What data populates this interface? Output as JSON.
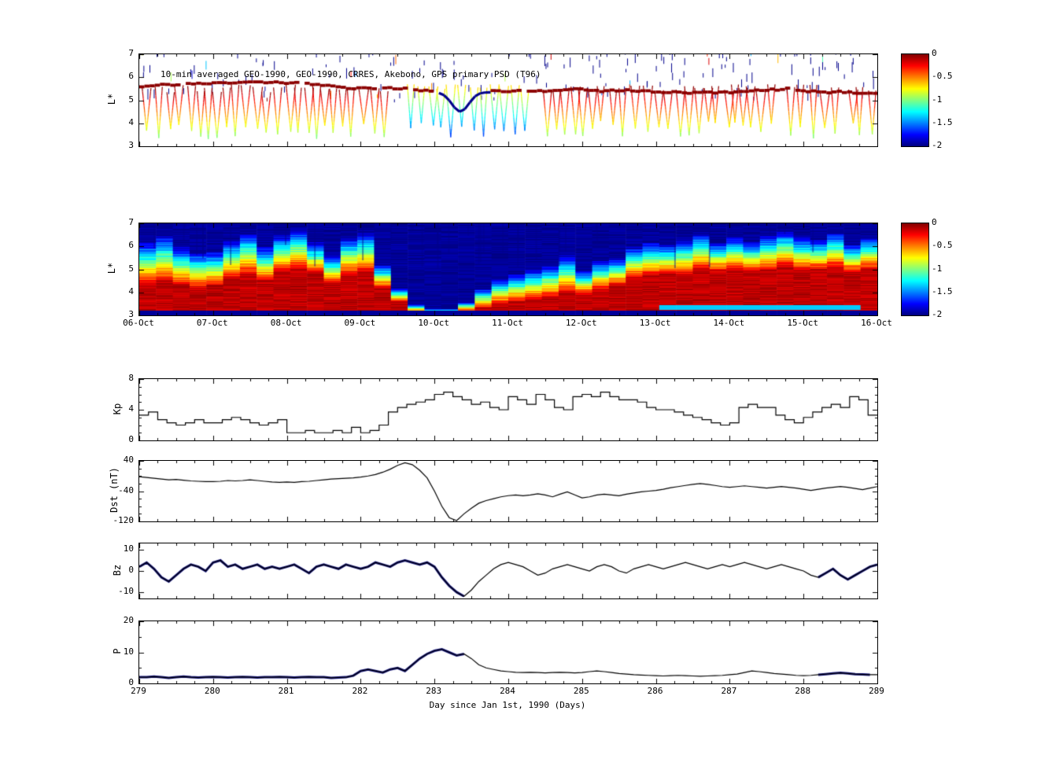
{
  "figure": {
    "background": "#ffffff",
    "xlim": [
      279,
      289
    ],
    "thick_line_color": "#10107a",
    "band_color": "#8b0000",
    "storm_dip_color": "#00008b"
  },
  "chart_data": [
    {
      "id": "psd_scatter",
      "type": "scatter",
      "title": "10-min averaged GEO-1990, GEO-1990, CRRES, Akebono, GPS primary PSD (T96)",
      "ylabel": "L*",
      "ylim": [
        3,
        7
      ],
      "yticks": [
        3,
        4,
        5,
        6,
        7
      ],
      "xlim": [
        279,
        289
      ],
      "clim": [
        -2,
        0
      ],
      "colorbar_ticks": [
        0,
        -0.5,
        -1,
        -1.5,
        -2
      ],
      "seed": 7,
      "band_L": 5.55,
      "dip_min_L": 3.4,
      "dip_spacing_days": 0.13,
      "storm_days": [
        283.0,
        283.7
      ]
    },
    {
      "id": "psd_heatmap",
      "type": "heatmap",
      "ylabel": "L*",
      "ylim": [
        3,
        7
      ],
      "yticks": [
        3,
        4,
        5,
        6,
        7
      ],
      "xlim": [
        279,
        289
      ],
      "clim": [
        -2,
        0
      ],
      "colorbar_ticks": [
        0,
        -0.5,
        -1,
        -1.5,
        -2
      ],
      "x_tick_labels": [
        "06-Oct",
        "07-Oct",
        "08-Oct",
        "09-Oct",
        "10-Oct",
        "11-Oct",
        "12-Oct",
        "13-Oct",
        "14-Oct",
        "15-Oct",
        "16-Oct"
      ],
      "bottom_strip_L": 3.22,
      "cyan_strip_days": [
        286.0,
        288.7
      ],
      "cyan_strip_L": [
        3.25,
        3.45
      ],
      "red_top": [
        4.4,
        4.5,
        4.3,
        4.2,
        4.3,
        4.6,
        4.8,
        4.5,
        4.9,
        5.0,
        4.8,
        4.4,
        4.8,
        4.9,
        4.2,
        3.6,
        3.15,
        3.1,
        3.1,
        3.2,
        3.3,
        3.5,
        3.6,
        3.7,
        3.8,
        4.0,
        3.9,
        4.1,
        4.3,
        4.6,
        4.7,
        4.8,
        4.8,
        5.0,
        4.9,
        5.0,
        4.9,
        5.0,
        5.1,
        5.0,
        5.0,
        5.1,
        4.9,
        5.0
      ],
      "blue_top": [
        6.2,
        6.5,
        6.0,
        5.8,
        5.8,
        6.3,
        6.6,
        6.0,
        6.5,
        6.8,
        6.2,
        5.6,
        6.4,
        6.6,
        5.2,
        4.2,
        3.5,
        3.3,
        3.3,
        3.6,
        4.2,
        4.6,
        4.8,
        5.0,
        5.2,
        5.6,
        5.0,
        5.4,
        5.5,
        6.0,
        6.2,
        6.1,
        6.3,
        6.6,
        6.2,
        6.4,
        6.2,
        6.5,
        6.7,
        6.4,
        6.3,
        6.6,
        6.1,
        6.4
      ]
    },
    {
      "id": "kp",
      "type": "line-step",
      "ylabel": "Kp",
      "ylim": [
        0,
        8
      ],
      "yticks": [
        0,
        4,
        8
      ],
      "yminor_step": 1,
      "x_start": 279,
      "x_step": 0.125,
      "values": [
        3.3,
        3.7,
        2.7,
        2.3,
        2.0,
        2.3,
        2.7,
        2.3,
        2.3,
        2.7,
        3.0,
        2.7,
        2.3,
        2.0,
        2.3,
        2.7,
        1.0,
        1.0,
        1.3,
        1.0,
        1.0,
        1.3,
        1.0,
        1.7,
        1.0,
        1.3,
        2.0,
        3.7,
        4.3,
        4.7,
        5.0,
        5.3,
        6.0,
        6.3,
        5.7,
        5.3,
        4.7,
        5.0,
        4.3,
        4.0,
        5.7,
        5.3,
        4.7,
        6.0,
        5.3,
        4.3,
        4.0,
        5.7,
        6.0,
        5.7,
        6.3,
        5.7,
        5.3,
        5.3,
        5.0,
        4.3,
        4.0,
        4.0,
        3.7,
        3.3,
        3.0,
        2.7,
        2.3,
        2.0,
        2.3,
        4.3,
        4.7,
        4.3,
        4.3,
        3.3,
        2.7,
        2.3,
        3.0,
        3.7,
        4.3,
        4.7,
        4.3,
        5.7,
        5.3,
        3.3
      ]
    },
    {
      "id": "dst",
      "type": "line",
      "ylabel": "Dst (nT)",
      "ylim": [
        -120,
        40
      ],
      "yticks": [
        40,
        -40,
        -120
      ],
      "yminor_step": 20,
      "x_start": 279,
      "x_step": 0.1,
      "values": [
        -2,
        -4,
        -6,
        -8,
        -10,
        -9,
        -11,
        -13,
        -14,
        -15,
        -15,
        -14,
        -12,
        -13,
        -12,
        -10,
        -12,
        -14,
        -16,
        -17,
        -16,
        -17,
        -15,
        -14,
        -12,
        -10,
        -8,
        -7,
        -6,
        -5,
        -3,
        0,
        4,
        10,
        18,
        28,
        35,
        30,
        15,
        -5,
        -40,
        -80,
        -110,
        -118,
        -100,
        -85,
        -72,
        -65,
        -60,
        -55,
        -52,
        -50,
        -52,
        -50,
        -47,
        -50,
        -55,
        -48,
        -42,
        -50,
        -58,
        -55,
        -50,
        -48,
        -50,
        -52,
        -48,
        -45,
        -42,
        -40,
        -38,
        -35,
        -31,
        -28,
        -25,
        -22,
        -20,
        -22,
        -25,
        -28,
        -30,
        -28,
        -26,
        -28,
        -30,
        -32,
        -30,
        -28,
        -30,
        -32,
        -35,
        -38,
        -35,
        -32,
        -30,
        -28,
        -30,
        -33,
        -36,
        -32,
        -28
      ]
    },
    {
      "id": "bz",
      "type": "line",
      "ylabel": "Bz",
      "ylim": [
        -13,
        13
      ],
      "yticks": [
        10,
        0,
        -10
      ],
      "x_start": 279,
      "x_step": 0.1,
      "thick_ranges": [
        [
          279,
          283.4
        ],
        [
          288.2,
          289
        ]
      ],
      "thick_color": "#10107a",
      "values": [
        2,
        4,
        1,
        -3,
        -5,
        -2,
        1,
        3,
        2,
        0,
        4,
        5,
        2,
        3,
        1,
        2,
        3,
        1,
        2,
        1,
        2,
        3,
        1,
        -1,
        2,
        3,
        2,
        1,
        3,
        2,
        1,
        2,
        4,
        3,
        2,
        4,
        5,
        4,
        3,
        4,
        2,
        -3,
        -7,
        -10,
        -12,
        -9,
        -5,
        -2,
        1,
        3,
        4,
        3,
        2,
        0,
        -2,
        -1,
        1,
        2,
        3,
        2,
        1,
        0,
        2,
        3,
        2,
        0,
        -1,
        1,
        2,
        3,
        2,
        1,
        2,
        3,
        4,
        3,
        2,
        1,
        2,
        3,
        2,
        3,
        4,
        3,
        2,
        1,
        2,
        3,
        2,
        1,
        0,
        -2,
        -3,
        -1,
        1,
        -2,
        -4,
        -2,
        0,
        2,
        3
      ]
    },
    {
      "id": "p",
      "type": "line",
      "ylabel": "P",
      "ylim": [
        0,
        20
      ],
      "yticks": [
        0,
        10,
        20
      ],
      "yminor_step": 5,
      "x_start": 279,
      "x_step": 0.1,
      "thick_ranges": [
        [
          279,
          283.45
        ],
        [
          288.2,
          288.9
        ]
      ],
      "thick_color": "#10107a",
      "xlabel": "Day since Jan 1st, 1990 (Days)",
      "x_tick_labels": [
        "279",
        "280",
        "281",
        "282",
        "283",
        "284",
        "285",
        "286",
        "287",
        "288",
        "289"
      ],
      "values": [
        2,
        2,
        2.2,
        2,
        1.8,
        2,
        2.2,
        2,
        1.9,
        2,
        2.1,
        2,
        1.9,
        2,
        2.1,
        2,
        1.9,
        2,
        2,
        2.1,
        2,
        1.9,
        2,
        2.1,
        2,
        2,
        1.8,
        1.9,
        2,
        2.5,
        4,
        4.5,
        4,
        3.5,
        4.5,
        5,
        4,
        6,
        8,
        9.5,
        10.5,
        11,
        10,
        9,
        9.5,
        8,
        6,
        5,
        4.5,
        4,
        3.8,
        3.6,
        3.5,
        3.6,
        3.5,
        3.4,
        3.5,
        3.6,
        3.5,
        3.4,
        3.5,
        3.8,
        4,
        3.8,
        3.5,
        3.2,
        3,
        2.8,
        2.7,
        2.6,
        2.5,
        2.4,
        2.5,
        2.6,
        2.5,
        2.4,
        2.3,
        2.4,
        2.5,
        2.6,
        2.8,
        3,
        3.5,
        4,
        3.8,
        3.5,
        3.2,
        3,
        2.8,
        2.6,
        2.5,
        2.6,
        2.8,
        3,
        3.2,
        3.4,
        3.2,
        3,
        2.9,
        2.8,
        2.8
      ]
    }
  ]
}
